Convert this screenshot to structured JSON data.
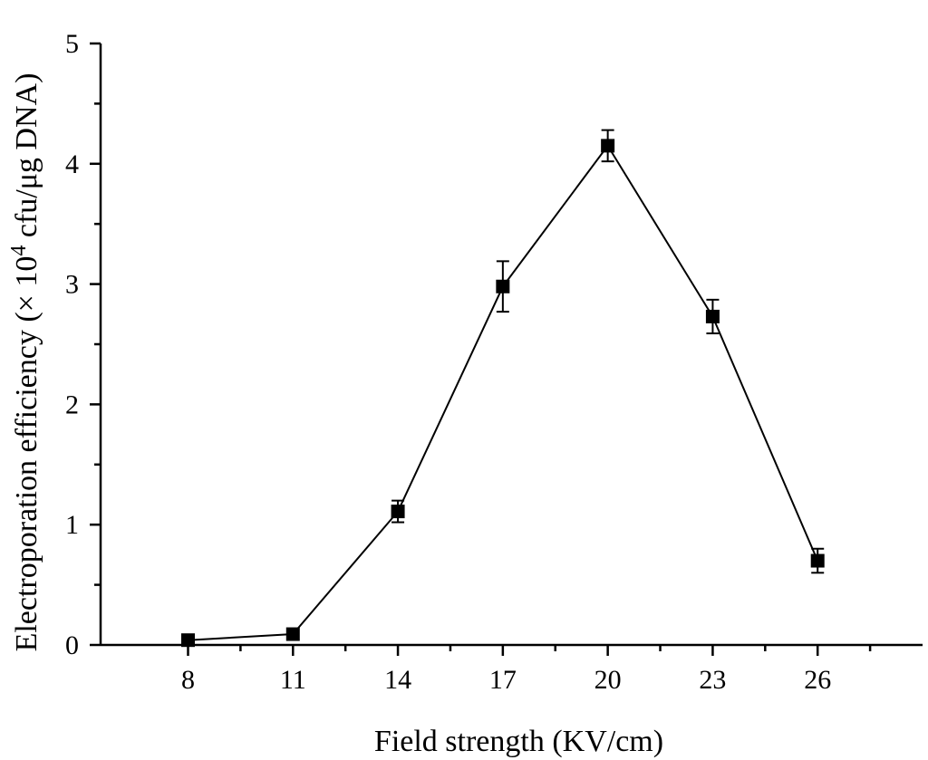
{
  "chart_data": {
    "type": "line",
    "title": "",
    "xlabel": "Field strength (KV/cm)",
    "ylabel": {
      "prefix": "Electroporation efficiency (× 10",
      "superscript": "4",
      "suffix": " cfu/μg DNA)"
    },
    "xlim": [
      5.5,
      29
    ],
    "ylim": [
      0,
      5
    ],
    "x_ticks": [
      8,
      11,
      14,
      17,
      20,
      23,
      26
    ],
    "x_tick_labels": [
      "8",
      "11",
      "14",
      "17",
      "20",
      "23",
      "26"
    ],
    "x_minor_ticks": [
      9.5,
      12.5,
      15.5,
      18.5,
      21.5,
      24.5,
      27.5
    ],
    "y_ticks": [
      0,
      1,
      2,
      3,
      4,
      5
    ],
    "y_tick_labels": [
      "0",
      "1",
      "2",
      "3",
      "4",
      "5"
    ],
    "y_minor_ticks": [
      0.5,
      1.5,
      2.5,
      3.5,
      4.5
    ],
    "grid": false,
    "legend": "none",
    "marker": "square",
    "color": "#000000",
    "series": [
      {
        "x": [
          8,
          11,
          14,
          17,
          20,
          23,
          26
        ],
        "y": [
          0.04,
          0.09,
          1.11,
          2.98,
          4.15,
          2.73,
          0.7
        ],
        "error": [
          0,
          0,
          0.09,
          0.21,
          0.13,
          0.14,
          0.1
        ]
      }
    ]
  }
}
